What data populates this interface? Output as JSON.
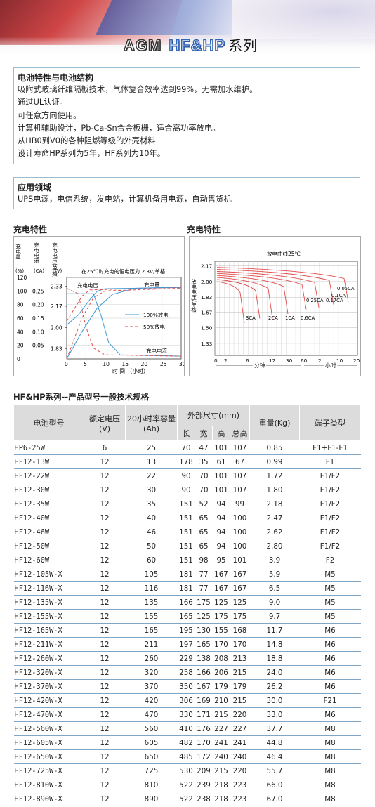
{
  "header": {
    "brand_agm": "AGM",
    "brand_series": "HF&HP",
    "brand_suffix": "系列"
  },
  "features": {
    "heading": "电池特性与电池结构",
    "lines": [
      "吸附式玻璃纤维隔板技术，气体复合效率达到99%，无需加水维护。",
      "通过UL认证。",
      "可任意方向使用。",
      "计算机辅助设计，Pb-Ca-Sn合金板栅，适合高功率放电。",
      "从HB0到V0的各种阻燃等级的外壳材料",
      "设计寿命HP系列为5年，HF系列为10年。"
    ]
  },
  "applications": {
    "heading": "应用领域",
    "text": "UPS电源，电信系统，发电站，计算机备用电源，自动售货机"
  },
  "charge_chart": {
    "section_title": "充电特性",
    "y_label_capacity": "充电量",
    "y_label_current": "充电电流",
    "y_label_voltage": "充电电压(单格)",
    "unit_capacity": "(%)",
    "unit_current": "(CA)",
    "unit_voltage": "(V)",
    "note": "在25℃时充电的恒电压为 2.3V/单格",
    "label_voltage": "充电电压",
    "label_capacity": "充电量",
    "label_current": "充电电流",
    "legend_100": "100%放电",
    "legend_50": "50%放电",
    "x_label": "时 间 （小时）",
    "x_ticks": [
      "0",
      "5",
      "10",
      "15",
      "20",
      "25",
      "30"
    ],
    "capacity_ticks": [
      "0",
      "20",
      "40",
      "60",
      "80",
      "100",
      "120"
    ],
    "current_ticks": [
      "0.05",
      "0.10",
      "0.15",
      "0.20",
      "0.25"
    ],
    "voltage_ticks": [
      "1.83",
      "2.00",
      "2.17",
      "2.33"
    ],
    "color_solid": "#3d9ad6",
    "color_dashed": "#e24b4b"
  },
  "discharge_chart": {
    "section_title": "充电特性",
    "title": "放电曲线25℃",
    "y_label": "放电电压/单格",
    "y_ticks": [
      "1.33",
      "1.50",
      "1.67",
      "1.83",
      "2.00",
      "2.17"
    ],
    "x_ticks": [
      "0",
      "2",
      "6",
      "12",
      "30",
      "60",
      "2",
      "10",
      "20"
    ],
    "x_label_min": "分钟",
    "x_label_hr": "小时",
    "curve_labels": [
      "3CA",
      "2CA",
      "1CA",
      "0.6CA",
      "0.25CA",
      "0.17CA",
      "0.1CA",
      "0.05CA"
    ],
    "color_curves": "#e24b4b"
  },
  "table": {
    "title": "HF&HP系列--产品型号一般技术规格",
    "headers": {
      "model": "电池型号",
      "voltage": "额定电压(V)",
      "capacity": "20小时率容量(Ah)",
      "dims": "外部尺寸(mm)",
      "length": "长",
      "width": "宽",
      "height": "高",
      "total_height": "总高",
      "weight": "重量(Kg)",
      "terminal": "端子类型"
    },
    "rows": [
      [
        "HP6-25W",
        "6",
        "25",
        "70",
        "47",
        "101",
        "107",
        "0.85",
        "F1+F1-F1"
      ],
      [
        "HF12-13W",
        "12",
        "13",
        "178",
        "35",
        "61",
        "67",
        "0.99",
        "F1"
      ],
      [
        "HF12-22W",
        "12",
        "22",
        "90",
        "70",
        "101",
        "107",
        "1.72",
        "F1/F2"
      ],
      [
        "HF12-30W",
        "12",
        "30",
        "90",
        "70",
        "101",
        "107",
        "1.80",
        "F1/F2"
      ],
      [
        "HF12-35W",
        "12",
        "35",
        "151",
        "52",
        "94",
        "99",
        "2.18",
        "F1/F2"
      ],
      [
        "HF12-40W",
        "12",
        "40",
        "151",
        "65",
        "94",
        "100",
        "2.47",
        "F1/F2"
      ],
      [
        "HF12-46W",
        "12",
        "46",
        "151",
        "65",
        "94",
        "100",
        "2.62",
        "F1/F2"
      ],
      [
        "HF12-50W",
        "12",
        "50",
        "151",
        "65",
        "94",
        "100",
        "2.80",
        "F1/F2"
      ],
      [
        "HF12-60W",
        "12",
        "60",
        "151",
        "98",
        "95",
        "101",
        "3.9",
        "F2"
      ],
      [
        "HF12-105W-X",
        "12",
        "105",
        "181",
        "77",
        "167",
        "167",
        "5.9",
        "M5"
      ],
      [
        "HF12-116W-X",
        "12",
        "116",
        "181",
        "77",
        "167",
        "167",
        "6.5",
        "M5"
      ],
      [
        "HF12-135W-X",
        "12",
        "135",
        "166",
        "175",
        "125",
        "125",
        "9.0",
        "M5"
      ],
      [
        "HF12-155W-X",
        "12",
        "155",
        "165",
        "125",
        "175",
        "175",
        "9.7",
        "M5"
      ],
      [
        "HF12-165W-X",
        "12",
        "165",
        "195",
        "130",
        "155",
        "168",
        "11.7",
        "M6"
      ],
      [
        "HF12-211W-X",
        "12",
        "211",
        "197",
        "165",
        "170",
        "170",
        "14.8",
        "M6"
      ],
      [
        "HF12-260W-X",
        "12",
        "260",
        "229",
        "138",
        "208",
        "213",
        "18.8",
        "M6"
      ],
      [
        "HF12-320W-X",
        "12",
        "320",
        "258",
        "166",
        "206",
        "215",
        "24.0",
        "M6"
      ],
      [
        "HF12-370W-X",
        "12",
        "370",
        "350",
        "167",
        "179",
        "179",
        "26.2",
        "M6"
      ],
      [
        "HF12-420W-X",
        "12",
        "420",
        "306",
        "169",
        "210",
        "215",
        "30.0",
        "F21"
      ],
      [
        "HF12-470W-X",
        "12",
        "470",
        "330",
        "171",
        "215",
        "220",
        "33.0",
        "M6"
      ],
      [
        "HF12-560W-X",
        "12",
        "560",
        "410",
        "176",
        "227",
        "227",
        "37.7",
        "M8"
      ],
      [
        "HF12-605W-X",
        "12",
        "605",
        "482",
        "170",
        "241",
        "241",
        "44.8",
        "M8"
      ],
      [
        "HF12-650W-X",
        "12",
        "650",
        "485",
        "172",
        "240",
        "240",
        "46.4",
        "M8"
      ],
      [
        "HF12-725W-X",
        "12",
        "725",
        "530",
        "209",
        "215",
        "220",
        "55.7",
        "M8"
      ],
      [
        "HF12-810W-X",
        "12",
        "810",
        "522",
        "239",
        "218",
        "223",
        "66.0",
        "M8"
      ],
      [
        "HF12-890W-X",
        "12",
        "890",
        "522",
        "238",
        "218",
        "223",
        "67.0",
        "M8"
      ]
    ]
  }
}
